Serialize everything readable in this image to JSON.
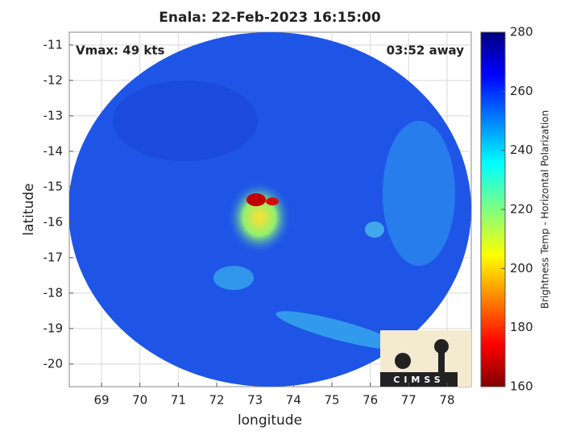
{
  "chart_data": {
    "type": "image",
    "title": "Enala: 22-Feb-2023 16:15:00",
    "annotations": [
      "Vmax: 49 kts",
      "03:52 away"
    ],
    "xlabel": "longitude",
    "ylabel": "latitude",
    "xlim": [
      68.16,
      78.63
    ],
    "xticks": [
      69,
      70,
      71,
      72,
      73,
      74,
      75,
      76,
      77,
      78
    ],
    "ylim": [
      -20.64,
      -10.64
    ],
    "yticks": [
      -20,
      -19,
      -18,
      -17,
      -16,
      -15,
      -14,
      -13,
      -12,
      -11
    ],
    "grid": true,
    "colorbar": {
      "label": "Brightness Temp - Horizontal Polarization",
      "lim": [
        160,
        280
      ],
      "ticks": [
        160,
        180,
        200,
        220,
        240,
        260,
        280
      ]
    },
    "logo": "CIMSS"
  }
}
